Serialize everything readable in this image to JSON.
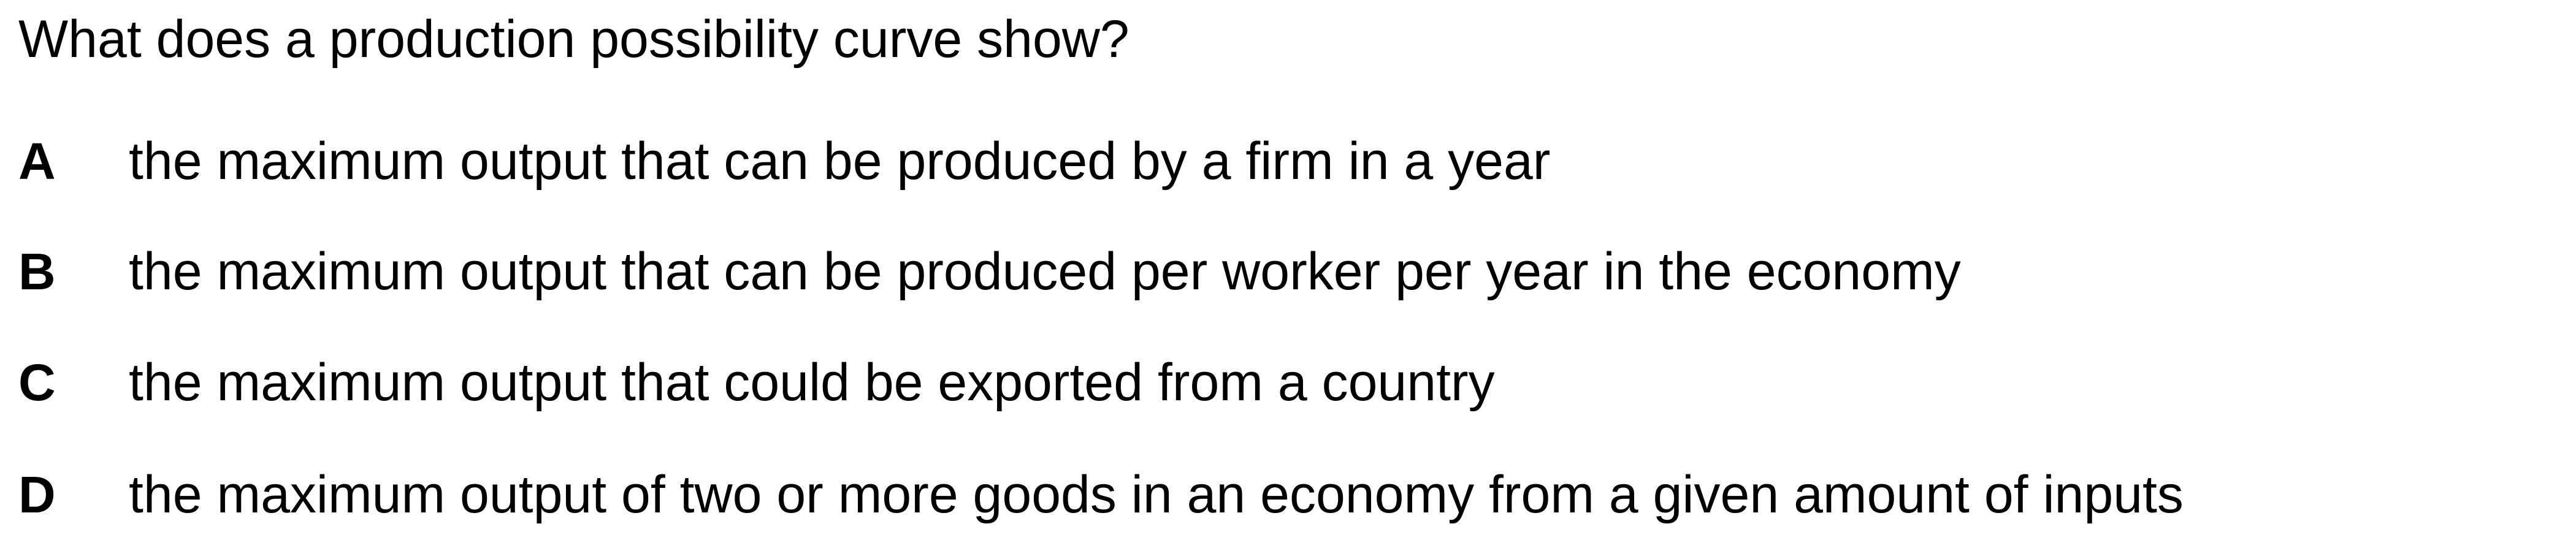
{
  "question": {
    "text": "What does a production possibility curve show?"
  },
  "options": [
    {
      "letter": "A",
      "text": "the maximum output that can be produced by a firm in a year"
    },
    {
      "letter": "B",
      "text": "the maximum output that can be produced per worker per year in the economy"
    },
    {
      "letter": "C",
      "text": "the maximum output that could be exported from a country"
    },
    {
      "letter": "D",
      "text": "the maximum output of two or more goods in an economy from a given amount of inputs"
    }
  ]
}
